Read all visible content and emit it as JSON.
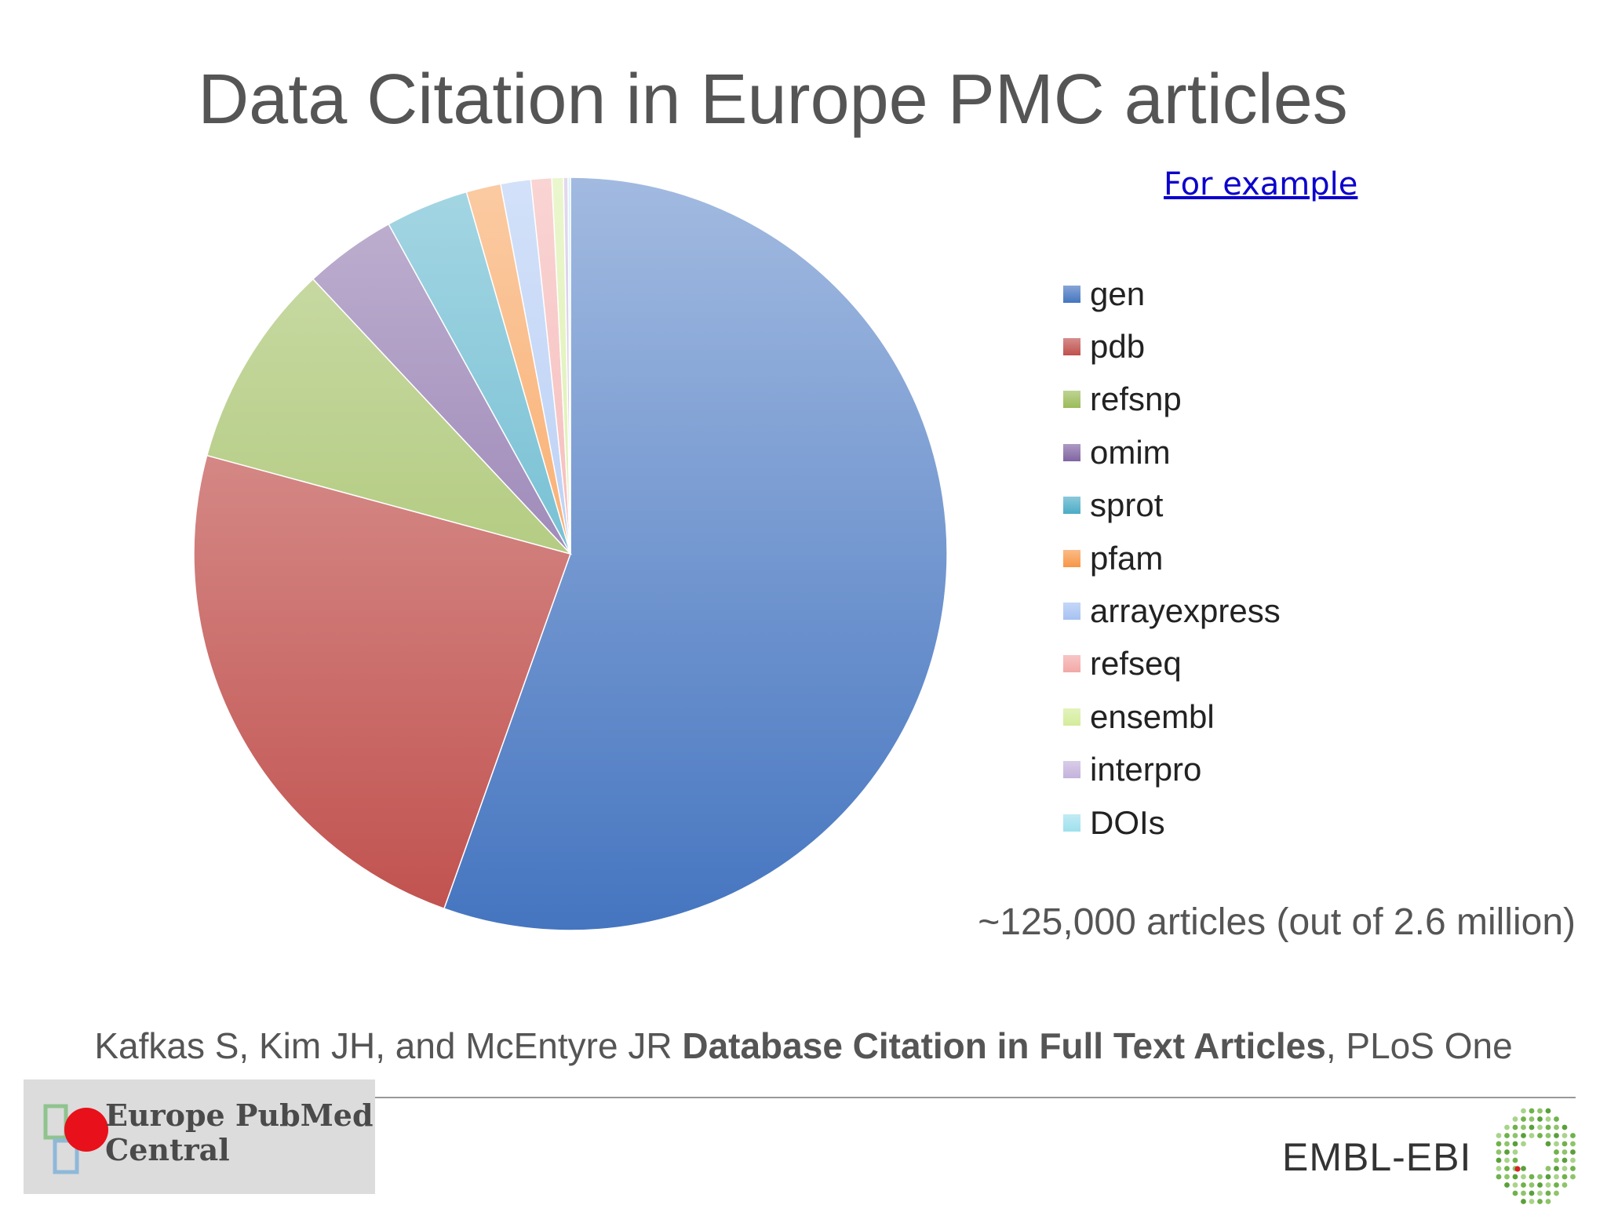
{
  "slide": {
    "title": "Data Citation in Europe PMC articles",
    "example_link": "For example",
    "articles_note": "~125,000 articles (out of 2.6 million)",
    "citation_authors": "Kafkas S, Kim JH, and McEntyre JR ",
    "citation_title": "Database Citation in Full Text Articles",
    "citation_journal": ", PLoS One"
  },
  "logos": {
    "epmc_line1": "Europe PubMed",
    "epmc_line2": "Central",
    "embl": "EMBL-EBI"
  },
  "chart_data": {
    "type": "pie",
    "title": "",
    "legend_position": "right",
    "categories": [
      "gen",
      "pdb",
      "refsnp",
      "omim",
      "sprot",
      "pfam",
      "arrayexpress",
      "refseq",
      "ensembl",
      "interpro",
      "DOIs"
    ],
    "values": [
      56.0,
      24.0,
      8.9,
      4.0,
      3.6,
      1.5,
      1.3,
      0.9,
      0.5,
      0.2,
      0.1
    ],
    "colors": [
      "#4575c0",
      "#c0504d",
      "#9bbb59",
      "#8064a2",
      "#4bacc6",
      "#f79646",
      "#a6c2f2",
      "#f2a8a6",
      "#d4ec9a",
      "#c4b2dc",
      "#9fe0ee"
    ]
  }
}
